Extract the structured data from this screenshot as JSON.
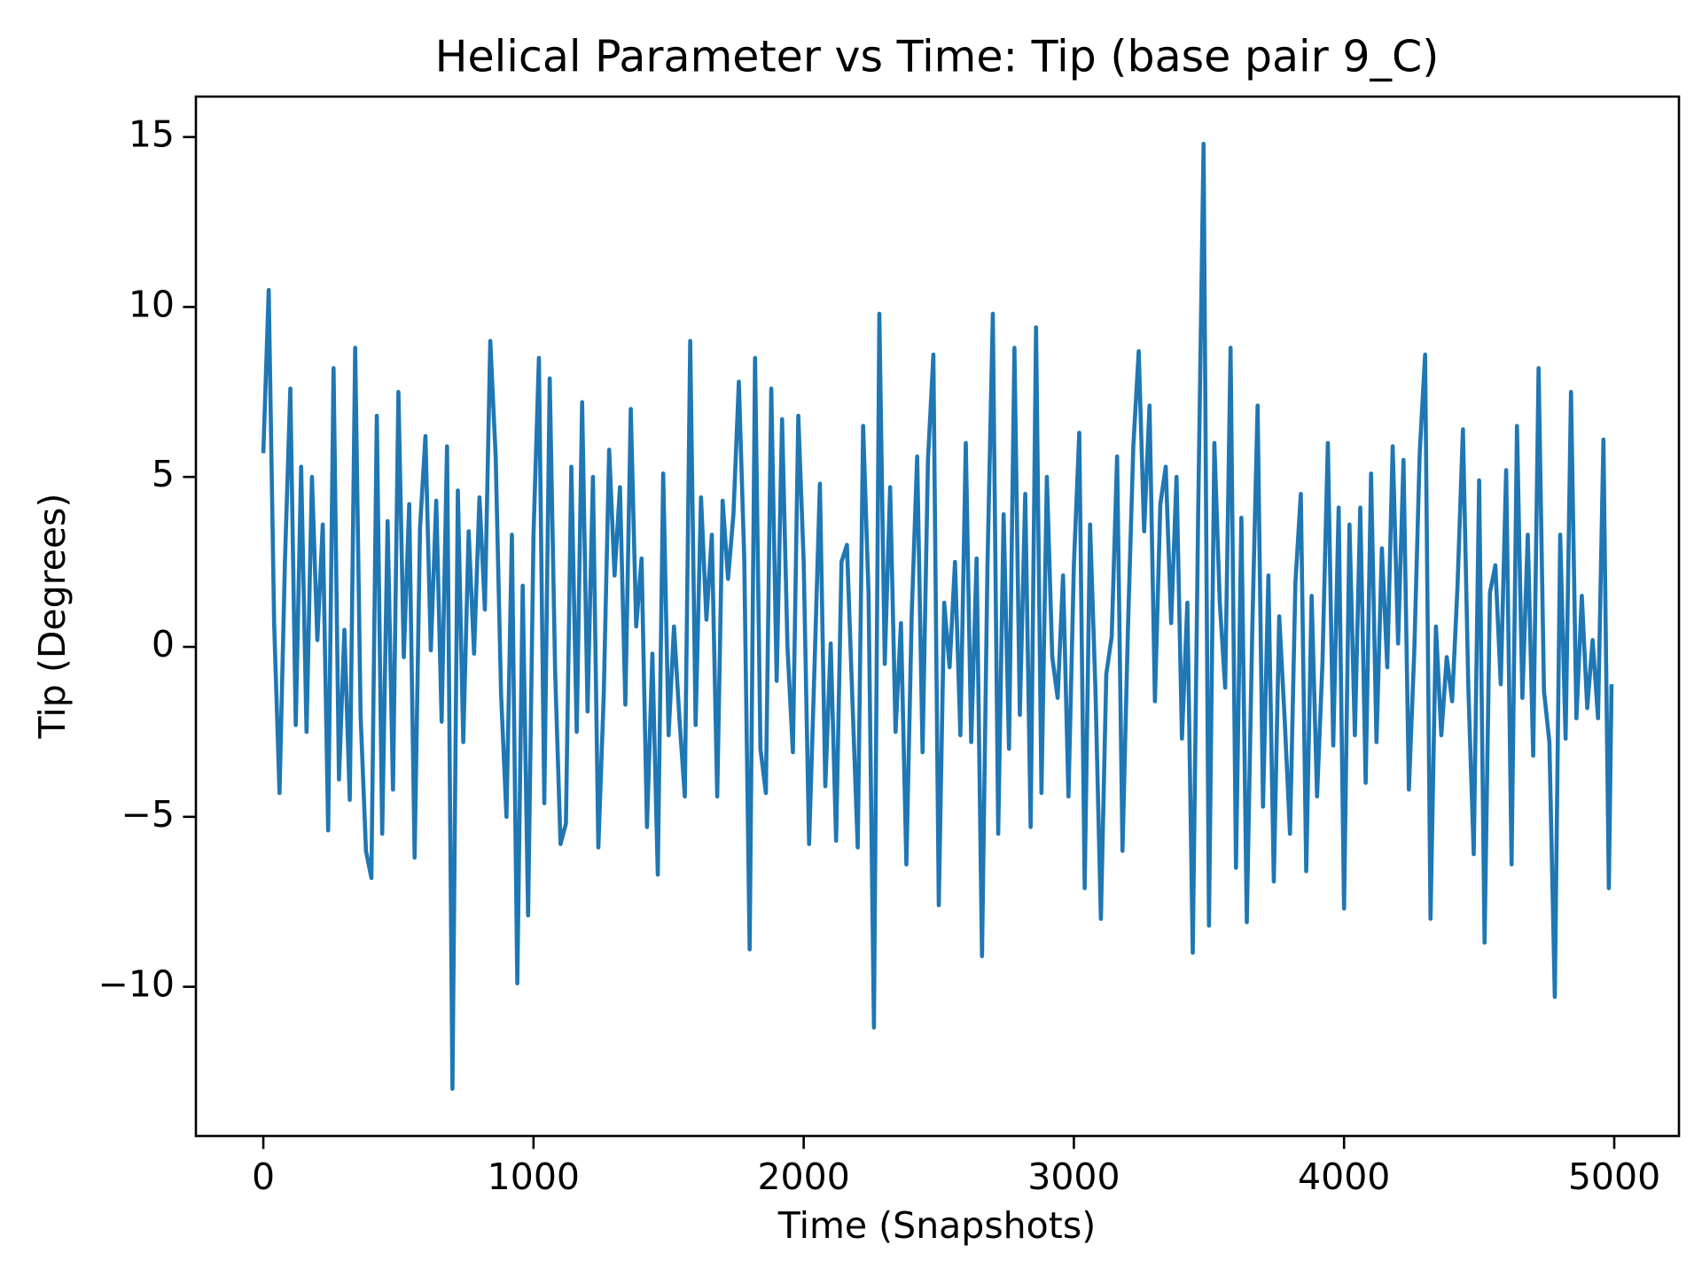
{
  "chart_data": {
    "type": "line",
    "title": "Helical Parameter vs Time: Tip (base pair  9_C)",
    "x_label": "Time (Snapshots)",
    "y_label": "Tip (Degrees)",
    "xlim": [
      -249.5,
      5239.5
    ],
    "ylim": [
      -14.39,
      16.19
    ],
    "xticks": [
      0,
      1000,
      2000,
      3000,
      4000,
      5000
    ],
    "yticks": [
      {
        "value": -10,
        "label": "−10"
      },
      {
        "value": -5,
        "label": "−5"
      },
      0,
      5,
      10,
      15
    ],
    "grid": false,
    "series": [
      {
        "color": "#1f77b4",
        "x": [
          0,
          20,
          40,
          60,
          80,
          100,
          120,
          140,
          160,
          180,
          200,
          220,
          240,
          260,
          280,
          300,
          320,
          340,
          360,
          380,
          400,
          420,
          440,
          460,
          480,
          500,
          520,
          540,
          560,
          580,
          600,
          620,
          640,
          660,
          680,
          700,
          720,
          740,
          760,
          780,
          800,
          820,
          840,
          860,
          880,
          900,
          920,
          940,
          960,
          980,
          1000,
          1020,
          1040,
          1060,
          1080,
          1100,
          1120,
          1140,
          1160,
          1180,
          1200,
          1220,
          1240,
          1260,
          1280,
          1300,
          1320,
          1340,
          1360,
          1380,
          1400,
          1420,
          1440,
          1460,
          1480,
          1500,
          1520,
          1540,
          1560,
          1580,
          1600,
          1620,
          1640,
          1660,
          1680,
          1700,
          1720,
          1740,
          1760,
          1780,
          1800,
          1820,
          1840,
          1860,
          1880,
          1900,
          1920,
          1940,
          1960,
          1980,
          2000,
          2020,
          2040,
          2060,
          2080,
          2100,
          2120,
          2140,
          2160,
          2180,
          2200,
          2220,
          2240,
          2260,
          2280,
          2300,
          2320,
          2340,
          2360,
          2380,
          2400,
          2420,
          2440,
          2460,
          2480,
          2500,
          2520,
          2540,
          2560,
          2580,
          2600,
          2620,
          2640,
          2660,
          2680,
          2700,
          2720,
          2740,
          2760,
          2780,
          2800,
          2820,
          2840,
          2860,
          2880,
          2900,
          2920,
          2940,
          2960,
          2980,
          3000,
          3020,
          3040,
          3060,
          3080,
          3100,
          3120,
          3140,
          3160,
          3180,
          3200,
          3220,
          3240,
          3260,
          3280,
          3300,
          3320,
          3340,
          3360,
          3380,
          3400,
          3420,
          3440,
          3460,
          3480,
          3500,
          3520,
          3540,
          3560,
          3580,
          3600,
          3620,
          3640,
          3660,
          3680,
          3700,
          3720,
          3740,
          3760,
          3780,
          3800,
          3820,
          3840,
          3860,
          3880,
          3900,
          3920,
          3940,
          3960,
          3980,
          4000,
          4020,
          4040,
          4060,
          4080,
          4100,
          4120,
          4140,
          4160,
          4180,
          4200,
          4220,
          4240,
          4260,
          4280,
          4300,
          4320,
          4340,
          4360,
          4380,
          4400,
          4420,
          4440,
          4460,
          4480,
          4500,
          4520,
          4540,
          4560,
          4580,
          4600,
          4620,
          4640,
          4660,
          4680,
          4700,
          4720,
          4740,
          4760,
          4780,
          4800,
          4820,
          4840,
          4860,
          4880,
          4900,
          4920,
          4940,
          4960,
          4980,
          4990
        ],
        "values": [
          5.7,
          10.5,
          0.7,
          -4.3,
          2.5,
          7.6,
          -2.3,
          5.3,
          -2.5,
          5.0,
          0.2,
          3.6,
          -5.4,
          8.2,
          -3.9,
          0.5,
          -4.5,
          8.8,
          -2.0,
          -6.0,
          -6.8,
          6.8,
          -5.5,
          3.7,
          -4.2,
          7.5,
          -0.3,
          4.2,
          -6.2,
          3.5,
          6.2,
          -0.1,
          4.3,
          -2.2,
          5.9,
          -13.0,
          4.6,
          -2.8,
          3.4,
          -0.2,
          4.4,
          1.1,
          9.0,
          5.6,
          -1.4,
          -5.0,
          3.3,
          -9.9,
          1.8,
          -7.9,
          3.3,
          8.5,
          -4.6,
          7.9,
          -0.7,
          -5.8,
          -5.2,
          5.3,
          -2.5,
          7.2,
          -1.9,
          5.0,
          -5.9,
          -1.4,
          5.8,
          2.1,
          4.7,
          -1.7,
          7.0,
          0.6,
          2.6,
          -5.3,
          -0.2,
          -6.7,
          5.1,
          -2.6,
          0.6,
          -2.1,
          -4.4,
          9.0,
          -2.3,
          4.4,
          0.8,
          3.3,
          -4.4,
          4.3,
          2.0,
          3.9,
          7.8,
          2.6,
          -8.9,
          8.5,
          -3.0,
          -4.3,
          7.6,
          -1.0,
          6.7,
          0.0,
          -3.1,
          6.8,
          2.5,
          -5.8,
          -0.6,
          4.8,
          -4.1,
          0.1,
          -5.7,
          2.5,
          3.0,
          -1.5,
          -5.9,
          6.5,
          1.6,
          -11.2,
          9.8,
          -0.5,
          4.7,
          -2.5,
          0.7,
          -6.4,
          1.0,
          5.6,
          -3.1,
          5.5,
          8.6,
          -7.6,
          1.3,
          -0.6,
          2.5,
          -2.6,
          6.0,
          -2.8,
          2.6,
          -9.1,
          2.3,
          9.8,
          -5.5,
          3.9,
          -3.0,
          8.8,
          -2.0,
          4.5,
          -5.3,
          9.4,
          -4.3,
          5.0,
          -0.3,
          -1.5,
          2.1,
          -4.4,
          2.4,
          6.3,
          -7.1,
          3.6,
          -1.3,
          -8.0,
          -0.8,
          0.3,
          5.6,
          -6.0,
          0.5,
          5.9,
          8.7,
          3.4,
          7.1,
          -1.6,
          4.2,
          5.3,
          0.7,
          5.0,
          -2.7,
          1.3,
          -9.0,
          3.9,
          14.8,
          -8.2,
          6.0,
          1.3,
          -1.2,
          8.8,
          -6.5,
          3.8,
          -8.1,
          0.4,
          7.1,
          -4.7,
          2.1,
          -6.9,
          0.9,
          -2.1,
          -5.5,
          1.9,
          4.5,
          -6.6,
          1.5,
          -4.4,
          -0.5,
          6.0,
          -2.9,
          4.1,
          -7.7,
          3.6,
          -2.6,
          4.1,
          -4.0,
          5.1,
          -2.8,
          2.9,
          -0.6,
          5.9,
          0.1,
          5.5,
          -4.2,
          -0.1,
          5.7,
          8.6,
          -8.0,
          0.6,
          -2.6,
          -0.3,
          -1.6,
          1.8,
          6.4,
          -1.2,
          -6.1,
          4.9,
          -8.7,
          1.6,
          2.4,
          -1.1,
          5.2,
          -6.4,
          6.5,
          -1.5,
          3.3,
          -3.2,
          8.2,
          -1.3,
          -2.8,
          -10.3,
          3.3,
          -2.7,
          7.5,
          -2.1,
          1.5,
          -1.8,
          0.2,
          -2.1,
          6.1,
          -7.1,
          -1.1
        ]
      }
    ]
  }
}
